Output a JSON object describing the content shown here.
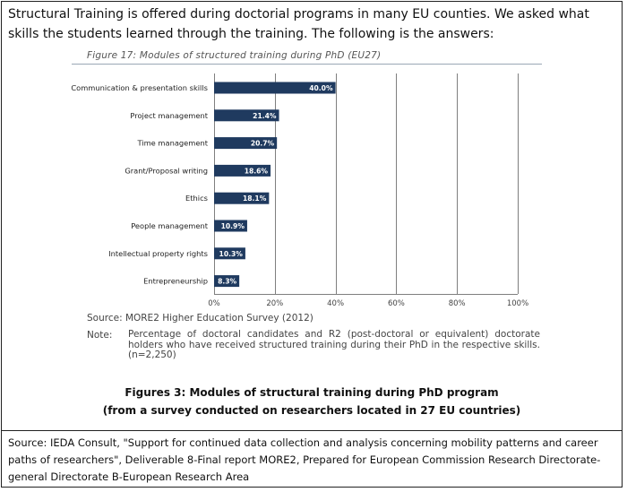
{
  "intro_text": "Structural Training is offered during doctorial programs in many EU counties. We asked what skills the students learned through the training. The following is the answers:",
  "figure_title": "Figure 17: Modules of structured training during PhD (EU27)",
  "chart_data": {
    "type": "bar",
    "orientation": "horizontal",
    "title": "Figure 17: Modules of structured training during PhD (EU27)",
    "categories": [
      "Communication & presentation skills",
      "Project management",
      "Time management",
      "Grant/Proposal writing",
      "Ethics",
      "People management",
      "Intellectual property rights",
      "Entrepreneurship"
    ],
    "values": [
      40.0,
      21.4,
      20.7,
      18.6,
      18.1,
      10.9,
      10.3,
      8.3
    ],
    "value_labels": [
      "40.0%",
      "21.4%",
      "20.7%",
      "18.6%",
      "18.1%",
      "10.9%",
      "10.3%",
      "8.3%"
    ],
    "xlim": [
      0,
      100
    ],
    "xticks": [
      0,
      20,
      40,
      60,
      80,
      100
    ],
    "xtick_labels": [
      "0%",
      "20%",
      "40%",
      "60%",
      "80%",
      "100%"
    ],
    "xlabel": "",
    "ylabel": "",
    "grid": true,
    "bar_color": "#1f3a5f",
    "grid_color": "#7f7f7f"
  },
  "source_line": "Source: MORE2 Higher Education Survey (2012)",
  "note_label": "Note:",
  "note_text": "Percentage of doctoral candidates and R2 (post-doctoral or equivalent) doctorate holders who have received structured training during their PhD in the respective skills. (n=2,250)",
  "caption_line1": "Figures 3: Modules of structural training during PhD program",
  "caption_line2": "(from a survey conducted on researchers located in 27 EU countries)",
  "citation": "Source: IEDA Consult, \"Support for continued data collection and analysis concerning mobility patterns and career paths of researchers\", Deliverable 8-Final report MORE2, Prepared for European Commission Research Directorate-general Directorate B-European Research Area"
}
